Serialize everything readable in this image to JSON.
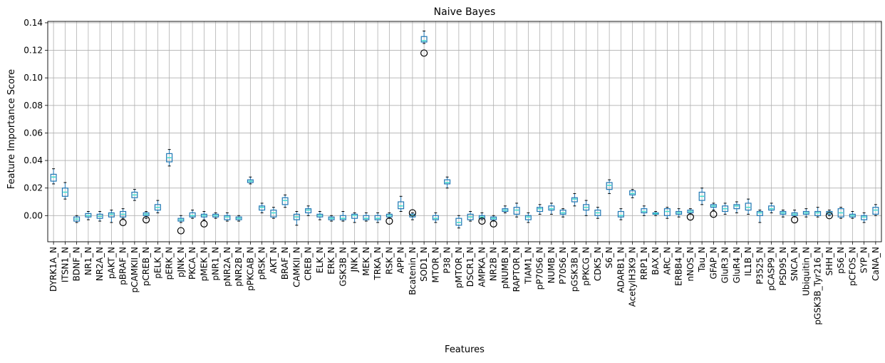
{
  "chart_data": {
    "type": "box",
    "title": "Naive Bayes",
    "xlabel": "Features",
    "ylabel": "Feature Importance Score",
    "ylim": [
      -0.019,
      0.141
    ],
    "yticks": [
      0.0,
      0.02,
      0.04,
      0.06,
      0.08,
      0.1,
      0.12,
      0.14
    ],
    "ytick_labels": [
      "0.00",
      "0.02",
      "0.04",
      "0.06",
      "0.08",
      "0.10",
      "0.12",
      "0.14"
    ],
    "grid": true,
    "colors": {
      "box": "#1f77b4",
      "box_fill": "#40e0d0",
      "median": "#2ca02c",
      "whisker": "#1f77b4",
      "outlier": "#000000",
      "grid": "#b0b0b0"
    },
    "series": [
      {
        "name": "DYRK1A_N",
        "box": [
          0.023,
          0.025,
          0.028,
          0.03,
          0.034
        ]
      },
      {
        "name": "ITSN1_N",
        "box": [
          0.012,
          0.014,
          0.017,
          0.02,
          0.024
        ]
      },
      {
        "name": "BDNF_N",
        "box": [
          -0.005,
          -0.004,
          -0.0025,
          -0.001,
          0.0
        ]
      },
      {
        "name": "NR1_N",
        "box": [
          -0.003,
          -0.001,
          0.0,
          0.0015,
          0.003
        ]
      },
      {
        "name": "NR2A_N",
        "box": [
          -0.004,
          -0.002,
          -0.0005,
          0.001,
          0.003
        ]
      },
      {
        "name": "pAKT_N",
        "box": [
          -0.005,
          -0.001,
          0.001,
          0.002,
          0.004
        ]
      },
      {
        "name": "pBRAF_N",
        "box": [
          -0.002,
          -0.001,
          0.001,
          0.003,
          0.005
        ],
        "outliers": [
          -0.005
        ]
      },
      {
        "name": "pCAMKII_N",
        "box": [
          0.011,
          0.013,
          0.015,
          0.017,
          0.019
        ]
      },
      {
        "name": "pCREB_N",
        "box": [
          -0.002,
          0.0,
          0.001,
          0.002,
          0.003
        ],
        "outliers": [
          -0.003
        ]
      },
      {
        "name": "pELK_N",
        "box": [
          0.002,
          0.004,
          0.006,
          0.008,
          0.011
        ]
      },
      {
        "name": "pERK_N",
        "box": [
          0.036,
          0.039,
          0.042,
          0.045,
          0.048
        ]
      },
      {
        "name": "pJNK_N",
        "box": [
          -0.005,
          -0.004,
          -0.003,
          -0.002,
          0.0
        ],
        "outliers": [
          -0.011
        ]
      },
      {
        "name": "PKCA_N",
        "box": [
          -0.002,
          -0.001,
          0.0,
          0.002,
          0.004
        ]
      },
      {
        "name": "pMEK_N",
        "box": [
          -0.003,
          -0.001,
          0.0,
          0.001,
          0.003
        ],
        "outliers": [
          -0.006
        ]
      },
      {
        "name": "pNR1_N",
        "box": [
          -0.002,
          -0.001,
          0.0,
          0.001,
          0.002
        ]
      },
      {
        "name": "pNR2A_N",
        "box": [
          -0.004,
          -0.003,
          -0.001,
          0.0,
          0.002
        ]
      },
      {
        "name": "pNR2B_N",
        "box": [
          -0.004,
          -0.003,
          -0.002,
          -0.001,
          0.0
        ]
      },
      {
        "name": "pPKCAB_N",
        "box": [
          0.023,
          0.024,
          0.025,
          0.026,
          0.028
        ]
      },
      {
        "name": "pRSK_N",
        "box": [
          0.002,
          0.004,
          0.006,
          0.007,
          0.009
        ]
      },
      {
        "name": "AKT_N",
        "box": [
          -0.002,
          -0.001,
          0.002,
          0.004,
          0.006
        ]
      },
      {
        "name": "BRAF_N",
        "box": [
          0.006,
          0.008,
          0.011,
          0.013,
          0.015
        ]
      },
      {
        "name": "CAMKII_N",
        "box": [
          -0.007,
          -0.003,
          -0.001,
          0.001,
          0.003
        ]
      },
      {
        "name": "CREB_N",
        "box": [
          0.0,
          0.002,
          0.004,
          0.005,
          0.007
        ]
      },
      {
        "name": "ELK_N",
        "box": [
          -0.003,
          -0.001,
          0.0,
          0.001,
          0.003
        ]
      },
      {
        "name": "ERK_N",
        "box": [
          -0.004,
          -0.003,
          -0.002,
          -0.001,
          0.0
        ]
      },
      {
        "name": "GSK3B_N",
        "box": [
          -0.004,
          -0.003,
          -0.002,
          0.0,
          0.003
        ]
      },
      {
        "name": "JNK_N",
        "box": [
          -0.005,
          -0.002,
          0.0,
          0.001,
          0.002
        ]
      },
      {
        "name": "MEK_N",
        "box": [
          -0.004,
          -0.003,
          -0.002,
          0.0,
          0.002
        ]
      },
      {
        "name": "TRKA_N",
        "box": [
          -0.005,
          -0.003,
          -0.002,
          0.0,
          0.002
        ]
      },
      {
        "name": "RSK_N",
        "box": [
          -0.002,
          -0.001,
          0.0,
          0.001,
          0.002
        ],
        "outliers": [
          -0.004
        ]
      },
      {
        "name": "APP_N",
        "box": [
          0.003,
          0.005,
          0.007,
          0.01,
          0.014
        ]
      },
      {
        "name": "Bcatenin_N",
        "box": [
          -0.003,
          -0.001,
          0.0,
          0.001,
          0.002
        ],
        "outliers": [
          0.002
        ]
      },
      {
        "name": "SOD1_N",
        "box": [
          0.125,
          0.126,
          0.127,
          0.13,
          0.134
        ],
        "outliers": [
          0.118
        ]
      },
      {
        "name": "MTOR_N",
        "box": [
          -0.005,
          -0.003,
          -0.002,
          0.0,
          0.002
        ]
      },
      {
        "name": "P38_N",
        "box": [
          0.02,
          0.023,
          0.024,
          0.026,
          0.028
        ]
      },
      {
        "name": "pMTOR_N",
        "box": [
          -0.009,
          -0.007,
          -0.005,
          -0.002,
          0.0
        ]
      },
      {
        "name": "DSCR1_N",
        "box": [
          -0.004,
          -0.003,
          -0.001,
          0.001,
          0.003
        ]
      },
      {
        "name": "AMPKA_N",
        "box": [
          -0.003,
          -0.002,
          -0.001,
          0.0,
          0.002
        ],
        "outliers": [
          -0.004
        ]
      },
      {
        "name": "NR2B_N",
        "box": [
          -0.004,
          -0.003,
          -0.002,
          -0.001,
          0.0
        ],
        "outliers": [
          -0.006
        ]
      },
      {
        "name": "pNUMB_N",
        "box": [
          0.002,
          0.003,
          0.004,
          0.005,
          0.007
        ]
      },
      {
        "name": "RAPTOR_N",
        "box": [
          -0.001,
          0.001,
          0.004,
          0.006,
          0.009
        ]
      },
      {
        "name": "TIAM1_N",
        "box": [
          -0.005,
          -0.003,
          -0.001,
          0.0,
          0.002
        ]
      },
      {
        "name": "pP70S6_N",
        "box": [
          0.001,
          0.003,
          0.005,
          0.006,
          0.008
        ]
      },
      {
        "name": "NUMB_N",
        "box": [
          0.001,
          0.004,
          0.005,
          0.007,
          0.009
        ]
      },
      {
        "name": "P70S6_N",
        "box": [
          -0.001,
          0.001,
          0.002,
          0.004,
          0.005
        ]
      },
      {
        "name": "pGSK3B_N",
        "box": [
          0.007,
          0.01,
          0.012,
          0.013,
          0.016
        ]
      },
      {
        "name": "pPKCG_N",
        "box": [
          0.0,
          0.004,
          0.006,
          0.008,
          0.011
        ]
      },
      {
        "name": "CDK5_N",
        "box": [
          -0.002,
          0.0,
          0.002,
          0.004,
          0.006
        ]
      },
      {
        "name": "S6_N",
        "box": [
          0.016,
          0.019,
          0.022,
          0.024,
          0.026
        ]
      },
      {
        "name": "ADARB1_N",
        "box": [
          -0.003,
          -0.001,
          0.0,
          0.003,
          0.005
        ]
      },
      {
        "name": "AcetylH3K9_N",
        "box": [
          0.013,
          0.015,
          0.016,
          0.018,
          0.019
        ]
      },
      {
        "name": "RRP1_N",
        "box": [
          0.0,
          0.002,
          0.003,
          0.005,
          0.007
        ]
      },
      {
        "name": "BAX_N",
        "box": [
          0.0,
          0.001,
          0.0015,
          0.002,
          0.003
        ]
      },
      {
        "name": "ARC_N",
        "box": [
          -0.002,
          0.0,
          0.003,
          0.005,
          0.006
        ]
      },
      {
        "name": "ERBB4_N",
        "box": [
          -0.001,
          0.001,
          0.002,
          0.003,
          0.005
        ]
      },
      {
        "name": "nNOS_N",
        "box": [
          0.001,
          0.002,
          0.003,
          0.004,
          0.005
        ],
        "outliers": [
          -0.001
        ]
      },
      {
        "name": "Tau_N",
        "box": [
          0.008,
          0.011,
          0.014,
          0.017,
          0.02
        ]
      },
      {
        "name": "GFAP_N",
        "box": [
          0.004,
          0.006,
          0.007,
          0.008,
          0.009
        ],
        "outliers": [
          0.001
        ]
      },
      {
        "name": "GluR3_N",
        "box": [
          0.001,
          0.003,
          0.005,
          0.007,
          0.009
        ]
      },
      {
        "name": "GluR4_N",
        "box": [
          0.002,
          0.005,
          0.007,
          0.008,
          0.01
        ]
      },
      {
        "name": "IL1B_N",
        "box": [
          0.001,
          0.004,
          0.006,
          0.009,
          0.012
        ]
      },
      {
        "name": "P3525_N",
        "box": [
          -0.005,
          0.0,
          0.002,
          0.003,
          0.004
        ]
      },
      {
        "name": "pCASP9_N",
        "box": [
          0.002,
          0.004,
          0.005,
          0.007,
          0.009
        ]
      },
      {
        "name": "PSD95_N",
        "box": [
          -0.001,
          0.001,
          0.002,
          0.003,
          0.004
        ]
      },
      {
        "name": "SNCA_N",
        "box": [
          -0.001,
          0.0,
          0.001,
          0.002,
          0.004
        ],
        "outliers": [
          -0.003
        ]
      },
      {
        "name": "Ubiquitin_N",
        "box": [
          -0.001,
          0.001,
          0.002,
          0.003,
          0.005
        ]
      },
      {
        "name": "pGSK3B_Tyr216_N",
        "box": [
          -0.001,
          0.0,
          0.002,
          0.003,
          0.006
        ]
      },
      {
        "name": "SHH_N",
        "box": [
          0.0,
          0.001,
          0.002,
          0.003,
          0.004
        ],
        "outliers": [
          0.0
        ]
      },
      {
        "name": "pS6_N",
        "box": [
          -0.002,
          -0.001,
          0.002,
          0.005,
          0.006
        ]
      },
      {
        "name": "pCFOS_N",
        "box": [
          -0.002,
          -0.001,
          0.0,
          0.001,
          0.003
        ]
      },
      {
        "name": "SYP_N",
        "box": [
          -0.005,
          -0.003,
          -0.001,
          0.0,
          0.002
        ]
      },
      {
        "name": "CaNA_N",
        "box": [
          0.0,
          0.001,
          0.004,
          0.006,
          0.008
        ]
      }
    ]
  }
}
